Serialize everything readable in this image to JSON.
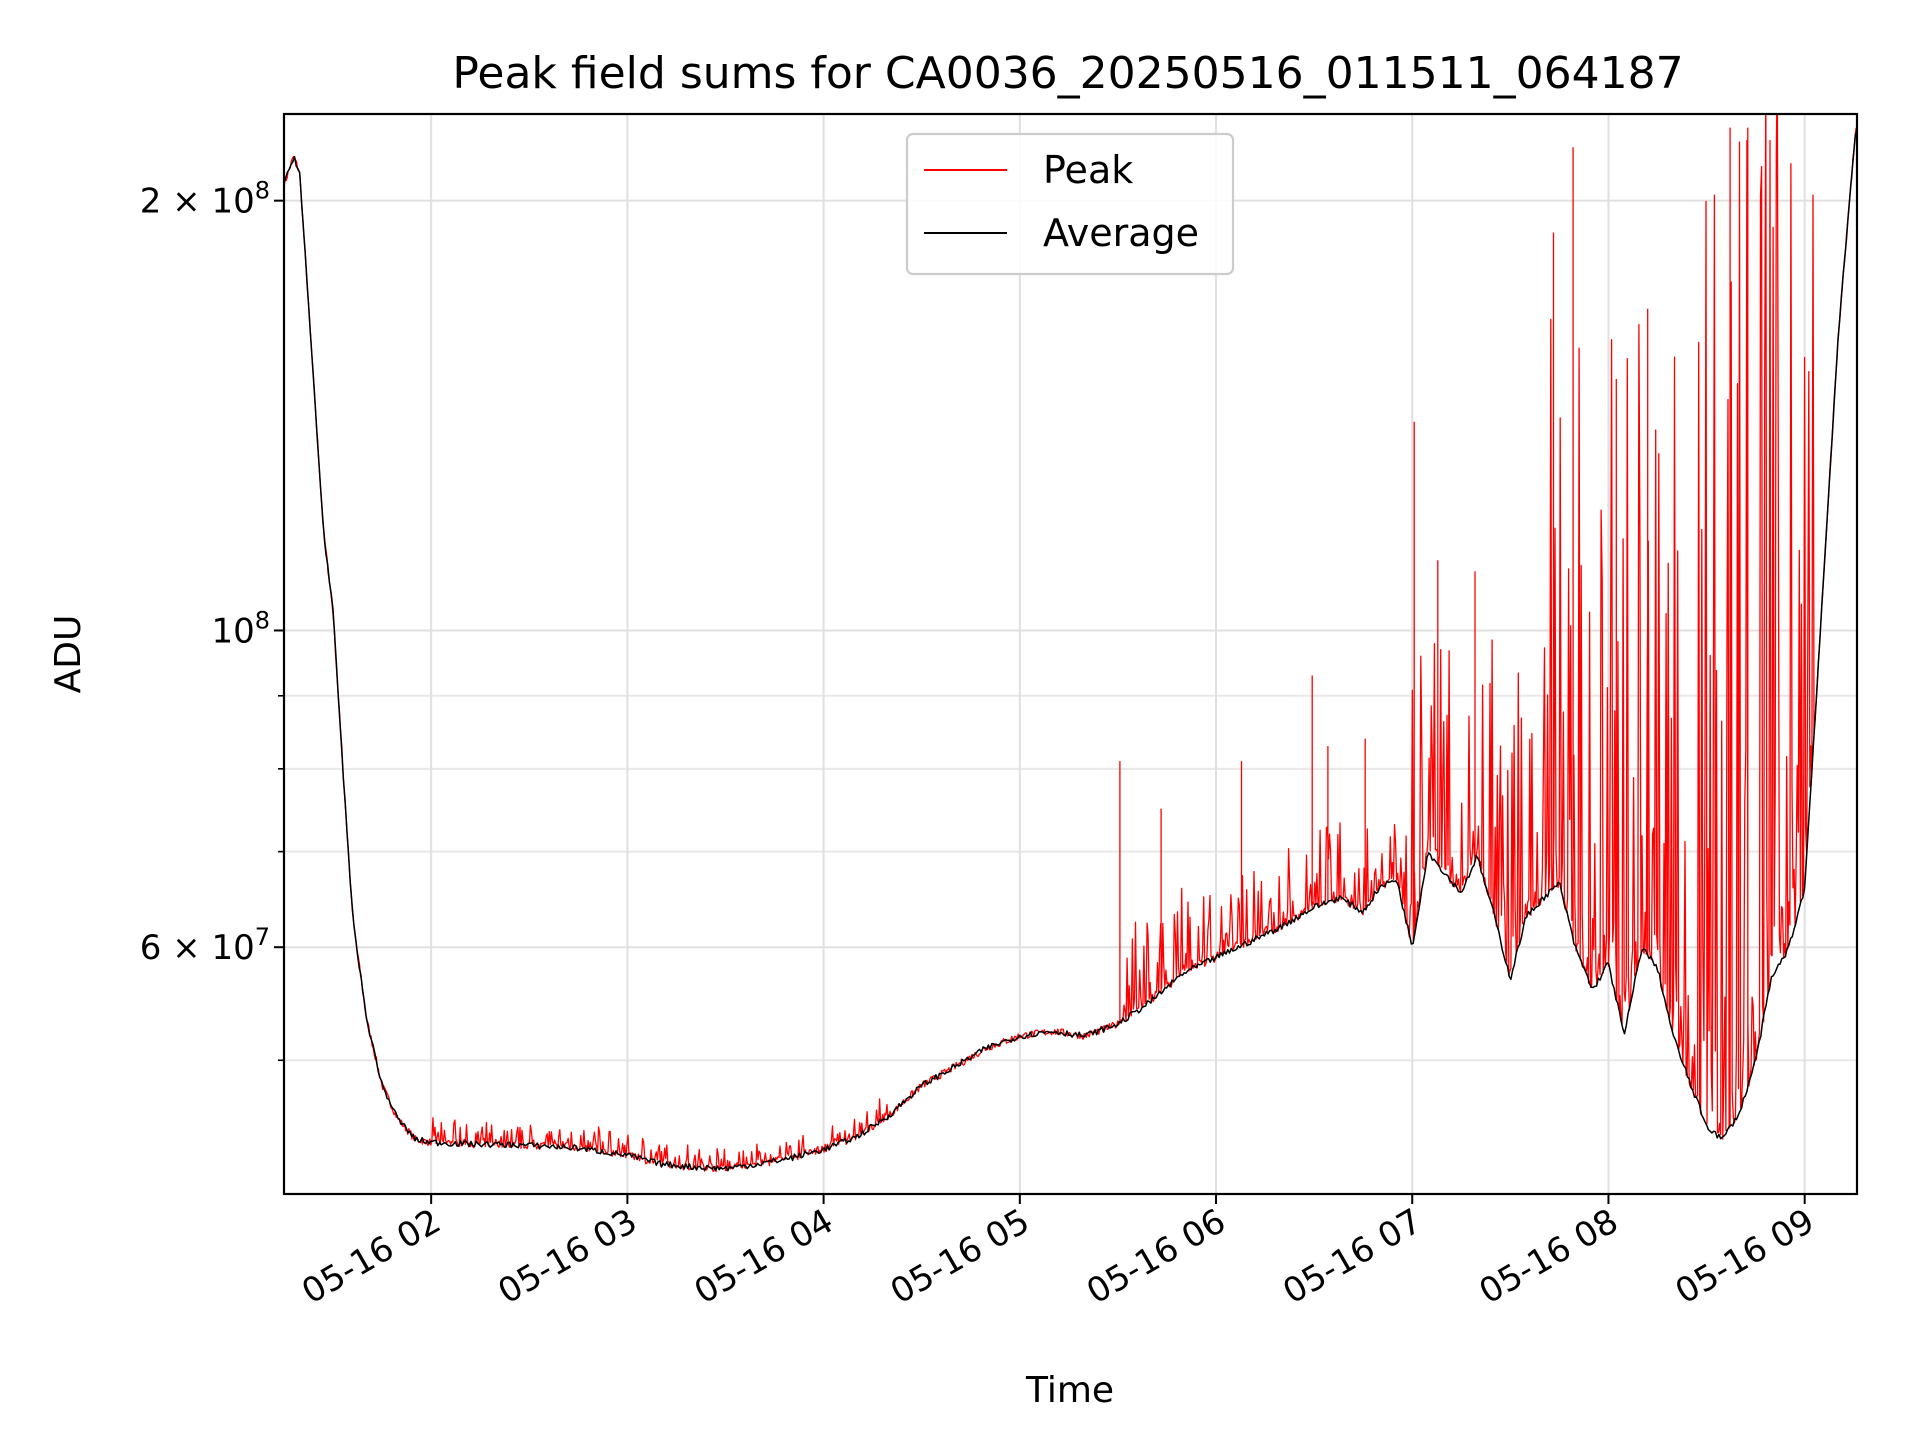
{
  "chart_data": {
    "type": "line",
    "title": "Peak field sums for CA0036_20250516_011511_064187",
    "xlabel": "Time",
    "ylabel": "ADU",
    "yscale": "log",
    "grid": true,
    "legend_position": "top-center",
    "xlim": [
      "05-16 01:15",
      "05-16 09:16"
    ],
    "ylim": [
      40300000,
      230000000
    ],
    "x_ticks": [
      "05-16 02",
      "05-16 03",
      "05-16 04",
      "05-16 05",
      "05-16 06",
      "05-16 07",
      "05-16 08",
      "05-16 09"
    ],
    "y_ticks": [
      {
        "value": 100000000,
        "mantissa": "",
        "base": "10",
        "exp": "8"
      },
      {
        "value": 200000000,
        "mantissa": "2 × ",
        "base": "10",
        "exp": "8"
      },
      {
        "value": 60000000,
        "mantissa": "6 × ",
        "base": "10",
        "exp": "7"
      }
    ],
    "y_minor_ticks": [
      50000000,
      70000000,
      80000000,
      90000000
    ],
    "x_unit": "hours of 05-16",
    "series": [
      {
        "name": "Peak",
        "color": "#ff0000",
        "noise": [
          {
            "from": 2.0,
            "to": 4.33,
            "amp": 1600000
          },
          {
            "from": 5.5,
            "to": 7.0,
            "amp": 9000000
          },
          {
            "from": 7.0,
            "to": 7.67,
            "amp": 35000000
          },
          {
            "from": 7.67,
            "to": 8.4,
            "amp": 110000000
          },
          {
            "from": 8.4,
            "to": 9.05,
            "amp": 200000000
          }
        ],
        "spikes": [
          {
            "x": 5.51,
            "y": 81000000
          },
          {
            "x": 5.72,
            "y": 75000000
          },
          {
            "x": 6.13,
            "y": 81000000
          },
          {
            "x": 6.49,
            "y": 93000000
          },
          {
            "x": 6.57,
            "y": 83000000
          },
          {
            "x": 6.76,
            "y": 84000000
          },
          {
            "x": 7.01,
            "y": 140000000
          },
          {
            "x": 7.13,
            "y": 112000000
          },
          {
            "x": 7.32,
            "y": 110000000
          },
          {
            "x": 7.72,
            "y": 190000000
          },
          {
            "x": 7.82,
            "y": 218000000
          },
          {
            "x": 8.04,
            "y": 150000000
          },
          {
            "x": 8.2,
            "y": 168000000
          },
          {
            "x": 8.62,
            "y": 225000000
          },
          {
            "x": 8.71,
            "y": 225000000
          }
        ]
      },
      {
        "name": "Average",
        "color": "#000000",
        "x": [
          1.25,
          1.3,
          1.33,
          1.4,
          1.45,
          1.5,
          1.55,
          1.6,
          1.67,
          1.75,
          1.83,
          1.92,
          2.0,
          2.17,
          2.5,
          2.75,
          3.0,
          3.17,
          3.33,
          3.5,
          3.67,
          3.83,
          4.0,
          4.17,
          4.33,
          4.5,
          4.67,
          4.83,
          5.0,
          5.17,
          5.33,
          5.5,
          5.67,
          5.83,
          6.0,
          6.17,
          6.33,
          6.5,
          6.63,
          6.75,
          6.83,
          6.92,
          7.0,
          7.08,
          7.17,
          7.25,
          7.33,
          7.42,
          7.5,
          7.58,
          7.67,
          7.75,
          7.83,
          7.92,
          8.0,
          8.08,
          8.17,
          8.25,
          8.33,
          8.42,
          8.5,
          8.58,
          8.67,
          8.75,
          8.83,
          8.92,
          9.0,
          9.08,
          9.17,
          9.26
        ],
        "y": [
          205000000,
          215000000,
          209000000,
          150000000,
          118000000,
          103000000,
          80000000,
          63000000,
          53500000,
          48000000,
          45500000,
          44000000,
          43800000,
          43700000,
          43600000,
          43400000,
          42900000,
          42300000,
          42100000,
          42000000,
          42300000,
          42700000,
          43300000,
          44200000,
          45700000,
          48000000,
          49500000,
          51000000,
          52000000,
          52400000,
          52000000,
          53000000,
          55000000,
          57500000,
          59000000,
          60500000,
          62000000,
          64000000,
          65000000,
          63500000,
          66000000,
          67000000,
          60000000,
          70000000,
          67500000,
          65500000,
          69500000,
          63000000,
          57000000,
          63000000,
          65000000,
          66500000,
          60000000,
          56000000,
          58500000,
          52000000,
          60000000,
          58000000,
          52000000,
          48000000,
          45000000,
          44000000,
          46000000,
          50000000,
          57000000,
          60000000,
          66000000,
          100000000,
          160000000,
          225000000
        ]
      }
    ]
  }
}
